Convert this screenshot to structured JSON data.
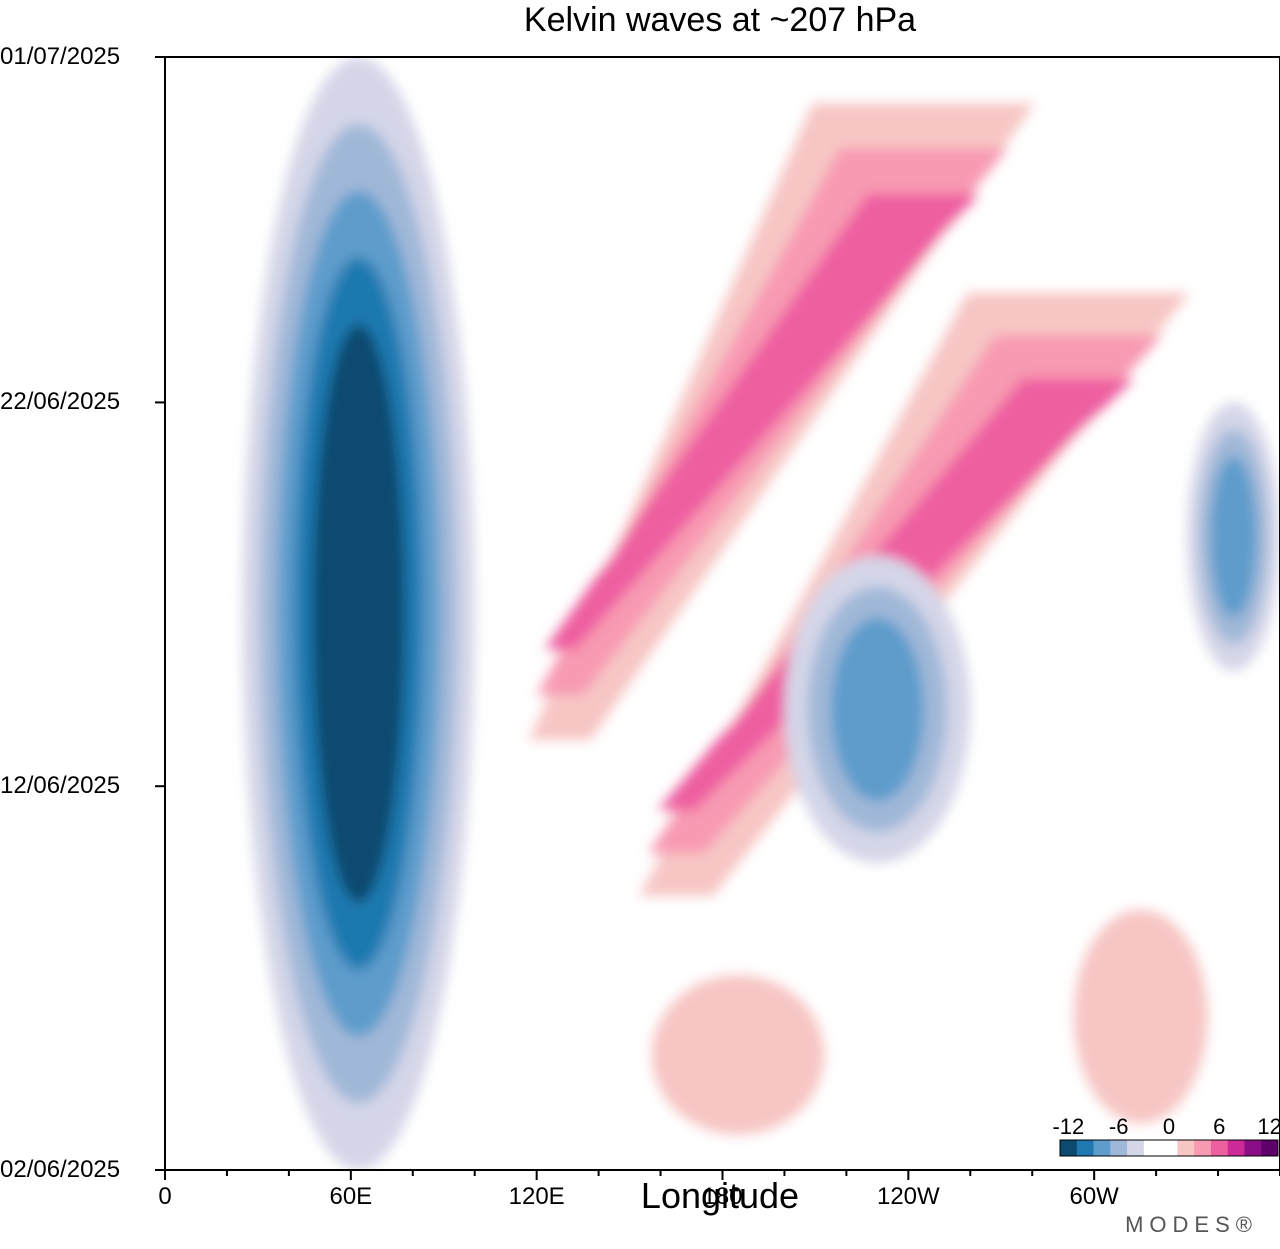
{
  "chart_data": {
    "type": "heatmap",
    "title": "Kelvin waves at ~207 hPa",
    "xlabel": "Longitude",
    "ylabel": "",
    "x_ticks": [
      "0",
      "60E",
      "120E",
      "180",
      "120W",
      "60W"
    ],
    "x_tick_values": [
      0,
      60,
      120,
      180,
      240,
      300
    ],
    "xlim": [
      0,
      360
    ],
    "y_ticks": [
      "01/07/2025",
      "22/06/2025",
      "12/06/2025",
      "02/06/2025"
    ],
    "y_tick_values": [
      "2025-07-01",
      "2025-06-22",
      "2025-06-12",
      "2025-06-02"
    ],
    "ylim": [
      "2025-06-02",
      "2025-07-01"
    ],
    "colorbar": {
      "labels": [
        "-12",
        "-6",
        "0",
        "6",
        "12"
      ],
      "label_values": [
        -12,
        -6,
        0,
        6,
        12
      ],
      "colors": [
        "#0d4a70",
        "#1f79b0",
        "#5d9ccc",
        "#a0b8d8",
        "#d4d6e8",
        "#ffffff",
        "#ffffff",
        "#f7c6c4",
        "#f89ab2",
        "#ee5fa0",
        "#cc2a96",
        "#8a0f86",
        "#5e006a"
      ],
      "placement": "bottom-right"
    },
    "features": [
      {
        "name": "negative anomaly band",
        "sign": "negative",
        "lon": [
          25,
          100
        ],
        "date": [
          "2025-06-02",
          "2025-07-01"
        ],
        "peak": -10
      },
      {
        "name": "positive propagating band",
        "sign": "positive",
        "lon_start": [
          115,
          140
        ],
        "lon_end": [
          200,
          290
        ],
        "date": [
          "2025-06-12",
          "2025-07-01"
        ],
        "peak": 9
      },
      {
        "name": "positive propagating band",
        "sign": "positive",
        "lon_start": [
          150,
          180
        ],
        "lon_end": [
          250,
          340
        ],
        "date": [
          "2025-06-08",
          "2025-06-26"
        ],
        "peak": 8
      },
      {
        "name": "negative anomaly",
        "sign": "negative",
        "lon": [
          200,
          260
        ],
        "date": [
          "2025-06-10",
          "2025-06-18"
        ],
        "peak": -6
      },
      {
        "name": "positive anomaly",
        "sign": "positive",
        "lon": [
          140,
          230
        ],
        "date": [
          "2025-06-02",
          "2025-06-08"
        ],
        "peak": 5
      },
      {
        "name": "positive anomaly",
        "sign": "positive",
        "lon": [
          280,
          350
        ],
        "date": [
          "2025-06-02",
          "2025-06-10"
        ],
        "peak": 4
      },
      {
        "name": "negative anomaly",
        "sign": "negative",
        "lon": [
          330,
          360
        ],
        "date": [
          "2025-06-15",
          "2025-06-22"
        ],
        "peak": -7
      }
    ]
  },
  "branding": "MODES®"
}
